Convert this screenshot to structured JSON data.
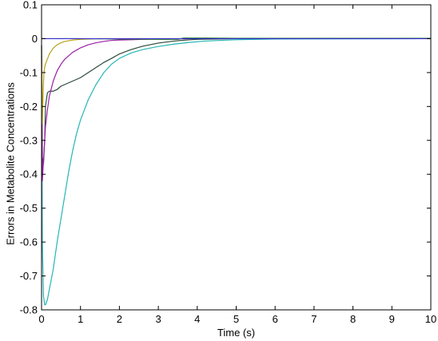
{
  "chart_data": {
    "type": "line",
    "xlabel": "Time (s)",
    "ylabel": "Errors in Metabolite Concentrations",
    "xlim": [
      0,
      10
    ],
    "ylim": [
      -0.8,
      0.1
    ],
    "xticks": [
      "0",
      "1",
      "2",
      "3",
      "4",
      "5",
      "6",
      "7",
      "8",
      "9",
      "10"
    ],
    "yticks": [
      "0.1",
      "0",
      "-0.1",
      "-0.2",
      "-0.3",
      "-0.4",
      "-0.5",
      "-0.6",
      "-0.7",
      "-0.8"
    ],
    "grid": false,
    "series": [
      {
        "color": "#27b5b5",
        "x": [
          0,
          0.02,
          0.05,
          0.08,
          0.1,
          0.15,
          0.2,
          0.3,
          0.4,
          0.5,
          0.6,
          0.7,
          0.8,
          0.9,
          1.0,
          1.2,
          1.4,
          1.6,
          1.8,
          2.0,
          2.3,
          2.6,
          3.0,
          3.4,
          3.8,
          4.2,
          4.6,
          5.0,
          6.0,
          10.0
        ],
        "y": [
          -0.02,
          -0.6,
          -0.76,
          -0.785,
          -0.785,
          -0.77,
          -0.74,
          -0.68,
          -0.6,
          -0.53,
          -0.46,
          -0.39,
          -0.33,
          -0.28,
          -0.24,
          -0.18,
          -0.135,
          -0.1,
          -0.075,
          -0.058,
          -0.042,
          -0.032,
          -0.023,
          -0.016,
          -0.011,
          -0.007,
          -0.005,
          -0.003,
          -0.001,
          0
        ]
      },
      {
        "color": "#2c4a3a",
        "x": [
          0,
          0.02,
          0.05,
          0.08,
          0.1,
          0.15,
          0.2,
          0.3,
          0.4,
          0.5,
          0.6,
          0.8,
          1.0,
          1.2,
          1.4,
          1.6,
          1.8,
          2.0,
          2.3,
          2.6,
          3.0,
          3.4,
          3.7,
          4.0,
          4.5,
          5.0,
          6.0,
          10.0
        ],
        "y": [
          -0.02,
          -0.35,
          -0.37,
          -0.3,
          -0.2,
          -0.16,
          -0.155,
          -0.155,
          -0.15,
          -0.14,
          -0.135,
          -0.125,
          -0.115,
          -0.1,
          -0.085,
          -0.07,
          -0.058,
          -0.045,
          -0.032,
          -0.022,
          -0.013,
          -0.007,
          -0.004,
          -0.002,
          -0.001,
          0,
          0,
          0
        ]
      },
      {
        "color": "#9a1fa6",
        "x": [
          0,
          0.02,
          0.05,
          0.08,
          0.1,
          0.15,
          0.2,
          0.3,
          0.4,
          0.5,
          0.6,
          0.8,
          1.0,
          1.2,
          1.4,
          1.6,
          1.8,
          2.0,
          2.3,
          2.6,
          3.0,
          4.0,
          10.0
        ],
        "y": [
          -0.05,
          -0.42,
          -0.36,
          -0.3,
          -0.26,
          -0.21,
          -0.17,
          -0.125,
          -0.095,
          -0.075,
          -0.06,
          -0.04,
          -0.027,
          -0.018,
          -0.012,
          -0.008,
          -0.005,
          -0.004,
          -0.003,
          -0.002,
          -0.001,
          0,
          0
        ]
      },
      {
        "color": "#b5a11a",
        "x": [
          0,
          0.02,
          0.04,
          0.06,
          0.08,
          0.1,
          0.15,
          0.2,
          0.3,
          0.4,
          0.5,
          0.6,
          0.8,
          1.0,
          1.2,
          1.5,
          2.0,
          10.0
        ],
        "y": [
          -0.02,
          -0.25,
          -0.16,
          -0.1,
          -0.085,
          -0.075,
          -0.06,
          -0.045,
          -0.028,
          -0.018,
          -0.012,
          -0.008,
          -0.004,
          -0.002,
          -0.001,
          0,
          0,
          0
        ]
      },
      {
        "color": "#2f7d2a",
        "x": [
          0,
          0.5,
          1.0,
          2.0,
          3.0,
          3.5,
          3.65,
          4.0,
          5.0,
          6.0,
          8.0,
          10.0
        ],
        "y": [
          0,
          0,
          0,
          -0.001,
          -0.002,
          -0.002,
          0.002,
          0.002,
          0.001,
          0.001,
          0.001,
          0.001
        ]
      },
      {
        "color": "#3a2fd6",
        "x": [
          0,
          10.0
        ],
        "y": [
          0,
          0
        ]
      }
    ]
  }
}
